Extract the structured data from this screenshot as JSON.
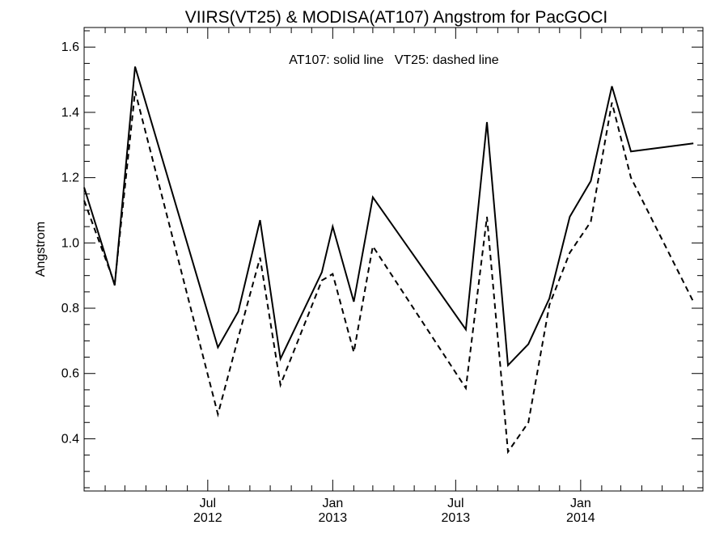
{
  "chart_data": {
    "type": "line",
    "title": "VIIRS(VT25) & MODISA(AT107)  Angstrom for PacGOCI",
    "annotation": "AT107: solid line   VT25: dashed line",
    "xlabel": "",
    "ylabel": "Angstrom",
    "xlim": [
      "2012-01-01",
      "2014-06-30"
    ],
    "ylim": [
      0.24,
      1.66
    ],
    "x_ticks": [
      {
        "date": "2012-07-01",
        "month": "Jul",
        "year": "2012"
      },
      {
        "date": "2013-01-01",
        "month": "Jan",
        "year": "2013"
      },
      {
        "date": "2013-07-01",
        "month": "Jul",
        "year": "2013"
      },
      {
        "date": "2014-01-01",
        "month": "Jan",
        "year": "2014"
      }
    ],
    "y_ticks": [
      "0.4",
      "0.6",
      "0.8",
      "1.0",
      "1.2",
      "1.4",
      "1.6"
    ],
    "series": [
      {
        "name": "AT107",
        "style": "solid",
        "color": "#000000",
        "x": [
          "2012-01-01",
          "2012-02-15",
          "2012-03-16",
          "2012-07-16",
          "2012-08-15",
          "2012-09-16",
          "2012-10-16",
          "2012-12-16",
          "2013-01-01",
          "2013-02-01",
          "2013-03-01",
          "2013-07-16",
          "2013-08-16",
          "2013-09-16",
          "2013-10-16",
          "2013-11-16",
          "2013-12-16",
          "2014-01-16",
          "2014-02-16",
          "2014-03-16",
          "2014-06-16"
        ],
        "y": [
          1.17,
          0.87,
          1.54,
          0.68,
          0.79,
          1.07,
          0.645,
          0.91,
          1.05,
          0.82,
          1.14,
          0.735,
          1.37,
          0.625,
          0.69,
          0.83,
          1.08,
          1.19,
          1.48,
          1.28,
          1.305
        ]
      },
      {
        "name": "VT25",
        "style": "dashed",
        "color": "#000000",
        "x": [
          "2012-01-01",
          "2012-02-15",
          "2012-03-16",
          "2012-07-16",
          "2012-08-15",
          "2012-09-16",
          "2012-10-16",
          "2012-12-16",
          "2013-01-01",
          "2013-02-01",
          "2013-03-01",
          "2013-07-16",
          "2013-08-16",
          "2013-09-16",
          "2013-10-16",
          "2013-11-16",
          "2013-12-16",
          "2014-01-16",
          "2014-02-16",
          "2014-03-16",
          "2014-06-16"
        ],
        "y": [
          1.13,
          0.875,
          1.465,
          0.475,
          0.71,
          0.955,
          0.565,
          0.885,
          0.905,
          0.665,
          0.99,
          0.555,
          1.08,
          0.36,
          0.45,
          0.81,
          0.97,
          1.065,
          1.43,
          1.2,
          0.82
        ]
      }
    ]
  }
}
